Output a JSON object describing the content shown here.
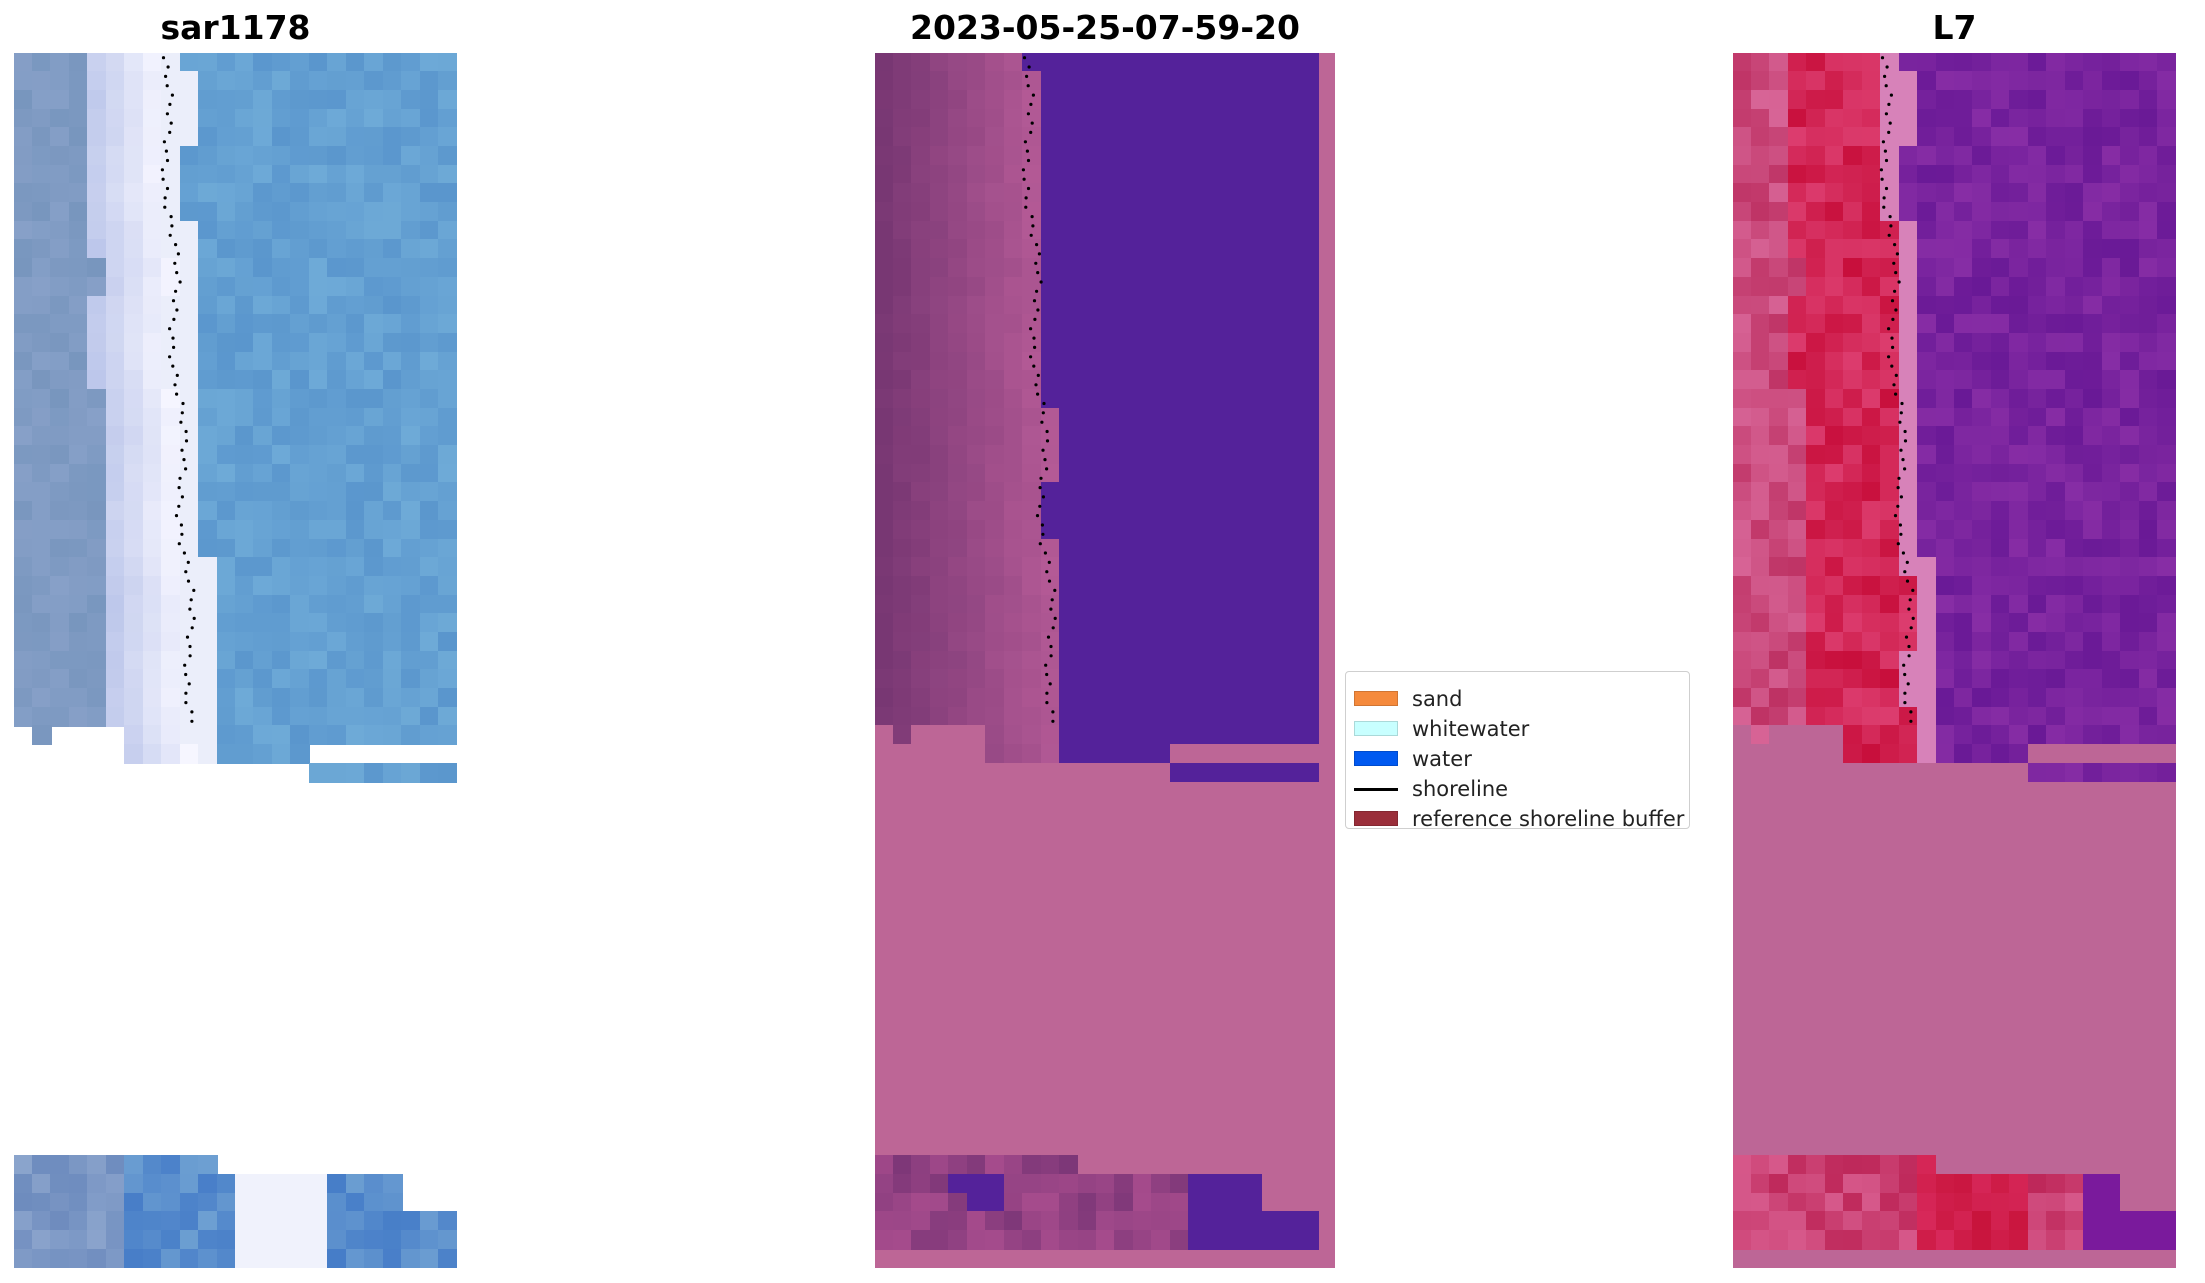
{
  "panels": [
    {
      "title": "sar1178",
      "kind": "rgb"
    },
    {
      "title": "2023-05-25-07-59-20",
      "kind": "classified"
    },
    {
      "title": "L7",
      "kind": "index"
    }
  ],
  "legend": {
    "items": [
      {
        "label": "sand",
        "color": "#f58a3c",
        "type": "patch"
      },
      {
        "label": "whitewater",
        "color": "#c8ffff",
        "type": "patch"
      },
      {
        "label": "water",
        "color": "#0059f0",
        "type": "patch"
      },
      {
        "label": "shoreline",
        "color": "#000000",
        "type": "line"
      },
      {
        "label": "reference shoreline buffer",
        "color": "#9a2e3a",
        "type": "patch"
      }
    ]
  },
  "colors": {
    "nodata_pink": "#bd6696",
    "classified_water": "#54229a",
    "sky_blue": "#5f95c9",
    "index_red": "#c8103a",
    "index_purple": "#7a1a9c"
  }
}
